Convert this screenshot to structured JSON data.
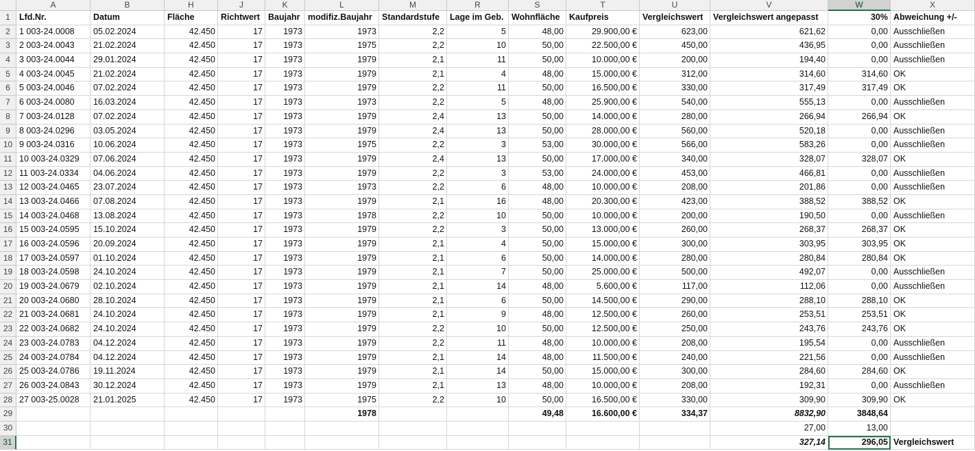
{
  "sheet": {
    "columns": [
      "A",
      "B",
      "H",
      "J",
      "K",
      "L",
      "M",
      "R",
      "S",
      "T",
      "U",
      "V",
      "W",
      "X"
    ],
    "rows": [
      {
        "number": 1,
        "cells": [
          "Lfd.Nr.",
          "Datum",
          "Fläche",
          "Richtwert",
          "Baujahr",
          "modifiz.Baujahr",
          "Standardstufe",
          "Lage im Geb.",
          "Wohnfläche",
          "Kaufpreis",
          "Vergleichswert",
          "Vergleichswert angepasst",
          "30%",
          "Abweichung +/-"
        ]
      },
      {
        "number": 2,
        "cells": [
          "1 003-24.0008",
          "05.02.2024",
          "42.450",
          "17",
          "1973",
          "1973",
          "2,2",
          "5",
          "48,00",
          "29.900,00 €",
          "623,00",
          "621,62",
          "0,00",
          "Ausschließen"
        ]
      },
      {
        "number": 3,
        "cells": [
          "2 003-24.0043",
          "21.02.2024",
          "42.450",
          "17",
          "1973",
          "1975",
          "2,2",
          "10",
          "50,00",
          "22.500,00 €",
          "450,00",
          "436,95",
          "0,00",
          "Ausschließen"
        ]
      },
      {
        "number": 4,
        "cells": [
          "3 003-24.0044",
          "29.01.2024",
          "42.450",
          "17",
          "1973",
          "1979",
          "2,1",
          "11",
          "50,00",
          "10.000,00 €",
          "200,00",
          "194,40",
          "0,00",
          "Ausschließen"
        ]
      },
      {
        "number": 5,
        "cells": [
          "4 003-24.0045",
          "21.02.2024",
          "42.450",
          "17",
          "1973",
          "1979",
          "2,1",
          "4",
          "48,00",
          "15.000,00 €",
          "312,00",
          "314,60",
          "314,60",
          "OK"
        ]
      },
      {
        "number": 6,
        "cells": [
          "5 003-24.0046",
          "07.02.2024",
          "42.450",
          "17",
          "1973",
          "1979",
          "2,2",
          "11",
          "50,00",
          "16.500,00 €",
          "330,00",
          "317,49",
          "317,49",
          "OK"
        ]
      },
      {
        "number": 7,
        "cells": [
          "6 003-24.0080",
          "16.03.2024",
          "42.450",
          "17",
          "1973",
          "1973",
          "2,2",
          "5",
          "48,00",
          "25.900,00 €",
          "540,00",
          "555,13",
          "0,00",
          "Ausschließen"
        ]
      },
      {
        "number": 8,
        "cells": [
          "7 003-24.0128",
          "07.02.2024",
          "42.450",
          "17",
          "1973",
          "1979",
          "2,4",
          "13",
          "50,00",
          "14.000,00 €",
          "280,00",
          "266,94",
          "266,94",
          "OK"
        ]
      },
      {
        "number": 9,
        "cells": [
          "8 003-24.0296",
          "03.05.2024",
          "42.450",
          "17",
          "1973",
          "1979",
          "2,4",
          "13",
          "50,00",
          "28.000,00 €",
          "560,00",
          "520,18",
          "0,00",
          "Ausschließen"
        ]
      },
      {
        "number": 10,
        "cells": [
          "9 003-24.0316",
          "10.06.2024",
          "42.450",
          "17",
          "1973",
          "1975",
          "2,2",
          "3",
          "53,00",
          "30.000,00 €",
          "566,00",
          "583,26",
          "0,00",
          "Ausschließen"
        ]
      },
      {
        "number": 11,
        "cells": [
          "10 003-24.0329",
          "07.06.2024",
          "42.450",
          "17",
          "1973",
          "1979",
          "2,4",
          "13",
          "50,00",
          "17.000,00 €",
          "340,00",
          "328,07",
          "328,07",
          "OK"
        ]
      },
      {
        "number": 12,
        "cells": [
          "11 003-24.0334",
          "04.06.2024",
          "42.450",
          "17",
          "1973",
          "1979",
          "2,2",
          "3",
          "53,00",
          "24.000,00 €",
          "453,00",
          "466,81",
          "0,00",
          "Ausschließen"
        ]
      },
      {
        "number": 13,
        "cells": [
          "12 003-24.0465",
          "23.07.2024",
          "42.450",
          "17",
          "1973",
          "1973",
          "2,2",
          "6",
          "48,00",
          "10.000,00 €",
          "208,00",
          "201,86",
          "0,00",
          "Ausschließen"
        ]
      },
      {
        "number": 14,
        "cells": [
          "13 003-24.0466",
          "07.08.2024",
          "42.450",
          "17",
          "1973",
          "1979",
          "2,1",
          "16",
          "48,00",
          "20.300,00 €",
          "423,00",
          "388,52",
          "388,52",
          "OK"
        ]
      },
      {
        "number": 15,
        "cells": [
          "14 003-24.0468",
          "13.08.2024",
          "42.450",
          "17",
          "1973",
          "1978",
          "2,2",
          "10",
          "50,00",
          "10.000,00 €",
          "200,00",
          "190,50",
          "0,00",
          "Ausschließen"
        ]
      },
      {
        "number": 16,
        "cells": [
          "15 003-24.0595",
          "15.10.2024",
          "42.450",
          "17",
          "1973",
          "1979",
          "2,2",
          "3",
          "50,00",
          "13.000,00 €",
          "260,00",
          "268,37",
          "268,37",
          "OK"
        ]
      },
      {
        "number": 17,
        "cells": [
          "16 003-24.0596",
          "20.09.2024",
          "42.450",
          "17",
          "1973",
          "1979",
          "2,1",
          "4",
          "50,00",
          "15.000,00 €",
          "300,00",
          "303,95",
          "303,95",
          "OK"
        ]
      },
      {
        "number": 18,
        "cells": [
          "17 003-24.0597",
          "01.10.2024",
          "42.450",
          "17",
          "1973",
          "1979",
          "2,1",
          "6",
          "50,00",
          "14.000,00 €",
          "280,00",
          "280,84",
          "280,84",
          "OK"
        ]
      },
      {
        "number": 19,
        "cells": [
          "18 003-24.0598",
          "24.10.2024",
          "42.450",
          "17",
          "1973",
          "1979",
          "2,1",
          "7",
          "50,00",
          "25.000,00 €",
          "500,00",
          "492,07",
          "0,00",
          "Ausschließen"
        ]
      },
      {
        "number": 20,
        "cells": [
          "19 003-24.0679",
          "02.10.2024",
          "42.450",
          "17",
          "1973",
          "1979",
          "2,1",
          "14",
          "48,00",
          "5.600,00 €",
          "117,00",
          "112,06",
          "0,00",
          "Ausschließen"
        ]
      },
      {
        "number": 21,
        "cells": [
          "20 003-24.0680",
          "28.10.2024",
          "42.450",
          "17",
          "1973",
          "1979",
          "2,1",
          "6",
          "50,00",
          "14.500,00 €",
          "290,00",
          "288,10",
          "288,10",
          "OK"
        ]
      },
      {
        "number": 22,
        "cells": [
          "21 003-24.0681",
          "24.10.2024",
          "42.450",
          "17",
          "1973",
          "1979",
          "2,1",
          "9",
          "48,00",
          "12.500,00 €",
          "260,00",
          "253,51",
          "253,51",
          "OK"
        ]
      },
      {
        "number": 23,
        "cells": [
          "22 003-24.0682",
          "24.10.2024",
          "42.450",
          "17",
          "1973",
          "1979",
          "2,2",
          "10",
          "50,00",
          "12.500,00 €",
          "250,00",
          "243,76",
          "243,76",
          "OK"
        ]
      },
      {
        "number": 24,
        "cells": [
          "23 003-24.0783",
          "04.12.2024",
          "42.450",
          "17",
          "1973",
          "1979",
          "2,2",
          "11",
          "48,00",
          "10.000,00 €",
          "208,00",
          "195,54",
          "0,00",
          "Ausschließen"
        ]
      },
      {
        "number": 25,
        "cells": [
          "24 003-24.0784",
          "04.12.2024",
          "42.450",
          "17",
          "1973",
          "1979",
          "2,1",
          "14",
          "48,00",
          "11.500,00 €",
          "240,00",
          "221,56",
          "0,00",
          "Ausschließen"
        ]
      },
      {
        "number": 26,
        "cells": [
          "25 003-24.0786",
          "19.11.2024",
          "42.450",
          "17",
          "1973",
          "1979",
          "2,1",
          "14",
          "50,00",
          "15.000,00 €",
          "300,00",
          "284,60",
          "284,60",
          "OK"
        ]
      },
      {
        "number": 27,
        "cells": [
          "26 003-24.0843",
          "30.12.2024",
          "42.450",
          "17",
          "1973",
          "1979",
          "2,1",
          "13",
          "48,00",
          "10.000,00 €",
          "208,00",
          "192,31",
          "0,00",
          "Ausschließen"
        ]
      },
      {
        "number": 28,
        "cells": [
          "27 003-25.0028",
          "21.01.2025",
          "42.450",
          "17",
          "1973",
          "1975",
          "2,2",
          "10",
          "50,00",
          "16.500,00 €",
          "330,00",
          "309,90",
          "309,90",
          "OK"
        ]
      },
      {
        "number": 29,
        "cells": [
          null,
          null,
          null,
          null,
          null,
          "1978",
          null,
          null,
          "49,48",
          "16.600,00 €",
          "334,37",
          "8832,90",
          "3848,64",
          null
        ]
      },
      {
        "number": 30,
        "cells": [
          null,
          null,
          null,
          null,
          null,
          null,
          null,
          null,
          null,
          null,
          null,
          "27,00",
          "13,00",
          null
        ]
      },
      {
        "number": 31,
        "cells": [
          null,
          null,
          null,
          null,
          null,
          null,
          null,
          null,
          null,
          null,
          null,
          "327,14",
          "296,05",
          "Vergleichswert"
        ]
      }
    ]
  }
}
